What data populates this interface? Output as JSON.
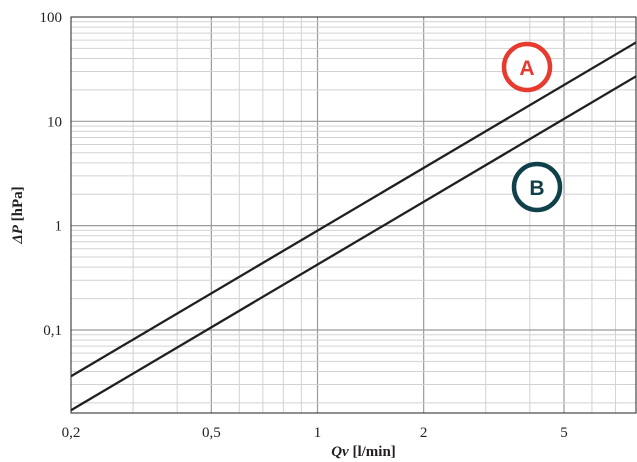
{
  "chart_data": {
    "type": "line",
    "scale": {
      "x": "log",
      "y": "log"
    },
    "xlabel_parts": [
      "Qv",
      " [l/min]"
    ],
    "ylabel_parts": [
      "ΔP",
      " [hPa]"
    ],
    "xlim": [
      0.2,
      8
    ],
    "ylim": [
      0.016,
      100
    ],
    "grid": true,
    "x_ticks": [
      {
        "value": 0.2,
        "label": "0,2"
      },
      {
        "value": 0.5,
        "label": "0,5"
      },
      {
        "value": 1,
        "label": "1"
      },
      {
        "value": 2,
        "label": "2"
      },
      {
        "value": 5,
        "label": "5"
      }
    ],
    "y_ticks": [
      {
        "value": 0.1,
        "label": "0,1"
      },
      {
        "value": 1,
        "label": "1"
      },
      {
        "value": 10,
        "label": "10"
      },
      {
        "value": 100,
        "label": "100"
      }
    ],
    "series": [
      {
        "name": "A",
        "color": "#e63b2e",
        "x": [
          0.2,
          8
        ],
        "y": [
          0.036,
          57
        ]
      },
      {
        "name": "B",
        "color": "#10404a",
        "x": [
          0.2,
          8
        ],
        "y": [
          0.017,
          27
        ]
      }
    ],
    "line_color": "#231f20"
  }
}
